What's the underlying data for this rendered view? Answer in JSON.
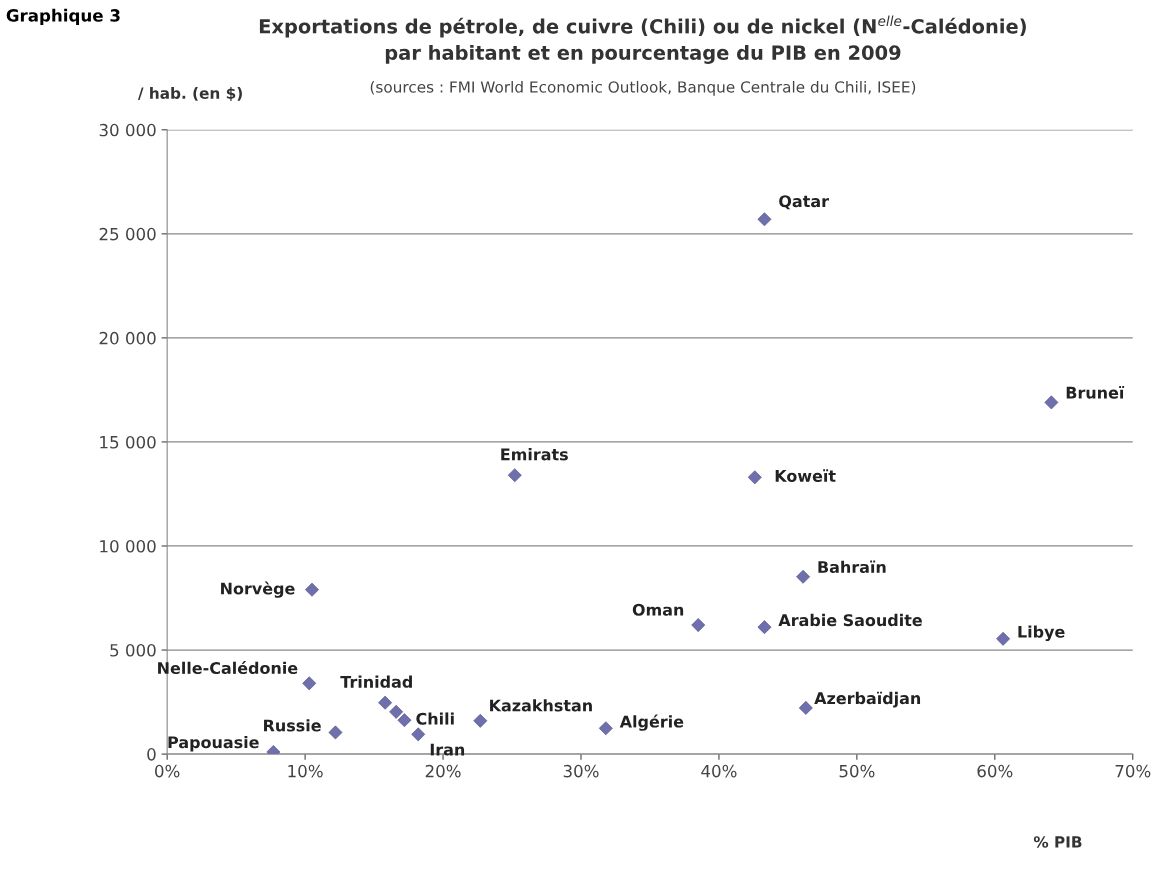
{
  "chart_data": {
    "type": "scatter",
    "title": "Exportations de pétrole, de cuivre (Chili) ou de nickel (N$^{elle}$-Calédonie)\npar habitant et en pourcentage du PIB en 2009",
    "subtitle": "(sources : FMI World Economic Outlook, Banque Centrale du Chili, ISEE)",
    "xlabel": "% PIB",
    "ylabel": "/ hab. (en $)",
    "series": [
      {
        "color": "#6f6fae",
        "x": [
          7.7,
          10.3,
          10.5,
          12.2,
          15.8,
          16.6,
          17.2,
          18.2,
          22.7,
          31.8,
          38.5,
          43.3,
          46.1,
          60.6,
          46.3,
          42.6,
          43.3,
          64.1,
          25.2
        ],
        "values": [
          100,
          3400,
          7900,
          1040,
          2470,
          2030,
          1630,
          950,
          1600,
          1240,
          6200,
          6100,
          8520,
          5540,
          2220,
          13300,
          25700,
          16900,
          13400
        ]
      }
    ],
    "annotations": [
      "Graphique 3",
      {
        "text": "Papouasie",
        "x": 7.7,
        "y": 100
      },
      {
        "text": "Nelle-Calédonie",
        "x": 10.3,
        "y": 3400
      },
      {
        "text": "Norvège",
        "x": 10.5,
        "y": 7900
      },
      {
        "text": "Russie",
        "x": 12.2,
        "y": 1040
      },
      {
        "text": "Trinidad",
        "x": 15.8,
        "y": 2470
      },
      {
        "text": "Chili",
        "x": 17.2,
        "y": 1630
      },
      {
        "text": "Iran",
        "x": 18.2,
        "y": 950
      },
      {
        "text": "Kazakhstan",
        "x": 22.7,
        "y": 1600
      },
      {
        "text": "Algérie",
        "x": 31.8,
        "y": 1240
      },
      {
        "text": "Oman",
        "x": 38.5,
        "y": 6200
      },
      {
        "text": "Arabie Saoudite",
        "x": 43.3,
        "y": 6100
      },
      {
        "text": "Bahraïn",
        "x": 46.1,
        "y": 8520
      },
      {
        "text": "Libye",
        "x": 60.6,
        "y": 5540
      },
      {
        "text": "Azerbaïdjan",
        "x": 46.3,
        "y": 2220
      },
      {
        "text": "Koweït",
        "x": 42.6,
        "y": 13300
      },
      {
        "text": "Qatar",
        "x": 43.3,
        "y": 25700
      },
      {
        "text": "Bruneï",
        "x": 64.1,
        "y": 16900
      },
      {
        "text": "Emirats",
        "x": 25.2,
        "y": 13400
      }
    ],
    "xlim": [
      0,
      70
    ],
    "xticks": [
      {
        "value": 0,
        "label": "0%"
      },
      {
        "value": 10,
        "label": "10%"
      },
      {
        "value": 20,
        "label": "20%"
      },
      {
        "value": 30,
        "label": "30%"
      },
      {
        "value": 40,
        "label": "40%"
      },
      {
        "value": 50,
        "label": "50%"
      },
      {
        "value": 60,
        "label": "60%"
      },
      {
        "value": 70,
        "label": "70%"
      }
    ],
    "ylim": [
      0,
      30000
    ],
    "yticks": [
      0,
      {
        "value": 5000,
        "label": "5 000"
      },
      {
        "value": 10000,
        "label": "10 000"
      },
      {
        "value": 15000,
        "label": "15 000"
      },
      {
        "value": 20000,
        "label": "20 000"
      },
      {
        "value": 25000,
        "label": "25 000"
      },
      {
        "value": 30000,
        "label": "30 000"
      }
    ],
    "grid": "y",
    "marker": "diamond"
  }
}
